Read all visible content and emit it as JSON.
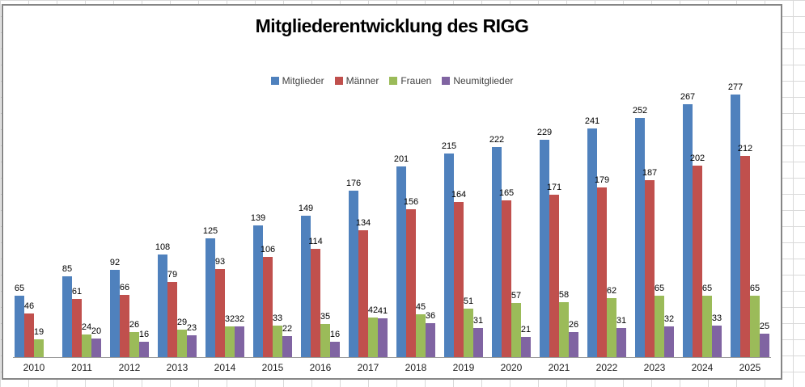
{
  "title": "Mitgliederentwicklung des RIGG",
  "chart_data": {
    "type": "bar",
    "title": "Mitgliederentwicklung des RIGG",
    "categories": [
      "2010",
      "2011",
      "2012",
      "2013",
      "2014",
      "2015",
      "2016",
      "2017",
      "2018",
      "2019",
      "2020",
      "2021",
      "2022",
      "2023",
      "2024",
      "2025"
    ],
    "series": [
      {
        "name": "Mitglieder",
        "color": "#4F81BD",
        "values": [
          65,
          85,
          92,
          108,
          125,
          139,
          149,
          176,
          201,
          215,
          222,
          229,
          241,
          252,
          267,
          277
        ]
      },
      {
        "name": "Männer",
        "color": "#C0504D",
        "values": [
          46,
          61,
          66,
          79,
          93,
          106,
          114,
          134,
          156,
          164,
          165,
          171,
          179,
          187,
          202,
          212
        ]
      },
      {
        "name": "Frauen",
        "color": "#9BBB59",
        "values": [
          19,
          24,
          26,
          29,
          32,
          33,
          35,
          42,
          45,
          51,
          57,
          58,
          62,
          65,
          65,
          65
        ]
      },
      {
        "name": "Neumitglieder",
        "color": "#8064A2",
        "values": [
          null,
          20,
          16,
          23,
          32,
          22,
          16,
          41,
          36,
          31,
          21,
          26,
          31,
          32,
          33,
          25
        ]
      }
    ],
    "xlabel": "",
    "ylabel": "",
    "ylim": [
      0,
      277
    ],
    "grid": false,
    "legend_position": "top",
    "data_labels": "outside-end"
  },
  "colors": {
    "chart_border": "#868686",
    "axis_line": "#9c9c9c",
    "sheet_gridline": "#d9d9d9"
  }
}
